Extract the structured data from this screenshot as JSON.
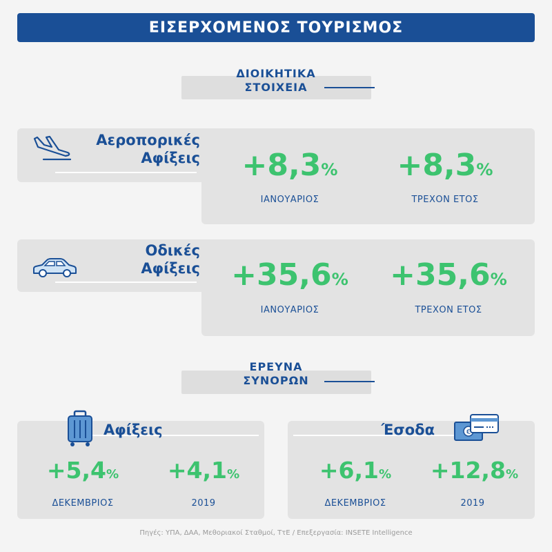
{
  "title": "ΕΙΣΕΡΧΟΜΕΝΟΣ ΤΟΥΡΙΣΜΟΣ",
  "colors": {
    "primary": "#1a4f96",
    "positive": "#3dc36f",
    "panel": "#e3e3e3"
  },
  "section_admin": {
    "line1": "ΔΙΟΙΚΗΤΙΚΑ",
    "line2": "ΣΤΟΙΧΕΙΑ"
  },
  "air": {
    "icon": "airplane-landing-icon",
    "title1": "Αεροπορικές",
    "title2": "Αφίξεις",
    "stats": [
      {
        "value": "+8,3",
        "suffix": "%",
        "label": "ΙΑΝΟΥΑΡΙΟΣ"
      },
      {
        "value": "+8,3",
        "suffix": "%",
        "label": "ΤΡΕΧΟΝ ΕΤΟΣ"
      }
    ]
  },
  "road": {
    "icon": "car-icon",
    "title1": "Οδικές",
    "title2": "Αφίξεις",
    "stats": [
      {
        "value": "+35,6",
        "suffix": "%",
        "label": "ΙΑΝΟΥΑΡΙΟΣ"
      },
      {
        "value": "+35,6",
        "suffix": "%",
        "label": "ΤΡΕΧΟΝ ΕΤΟΣ"
      }
    ]
  },
  "section_border": {
    "line1": "ΕΡΕΥΝΑ",
    "line2": "ΣΥΝΟΡΩΝ"
  },
  "arrivals": {
    "icon": "suitcase-icon",
    "title": "Αφίξεις",
    "stats": [
      {
        "value": "+5,4",
        "suffix": "%",
        "label": "ΔΕΚΕΜΒΡΙΟΣ"
      },
      {
        "value": "+4,1",
        "suffix": "%",
        "label": "2019"
      }
    ]
  },
  "revenue": {
    "icon": "money-card-icon",
    "title": "Έσοδα",
    "stats": [
      {
        "value": "+6,1",
        "suffix": "%",
        "label": "ΔΕΚΕΜΒΡΙΟΣ"
      },
      {
        "value": "+12,8",
        "suffix": "%",
        "label": "2019"
      }
    ]
  },
  "footer": "Πηγές: ΥΠΑ, ΔΑΑ, Μεθοριακοί Σταθμοί, ΤτΕ /  Επεξεργασία:  INSETE Intelligence"
}
